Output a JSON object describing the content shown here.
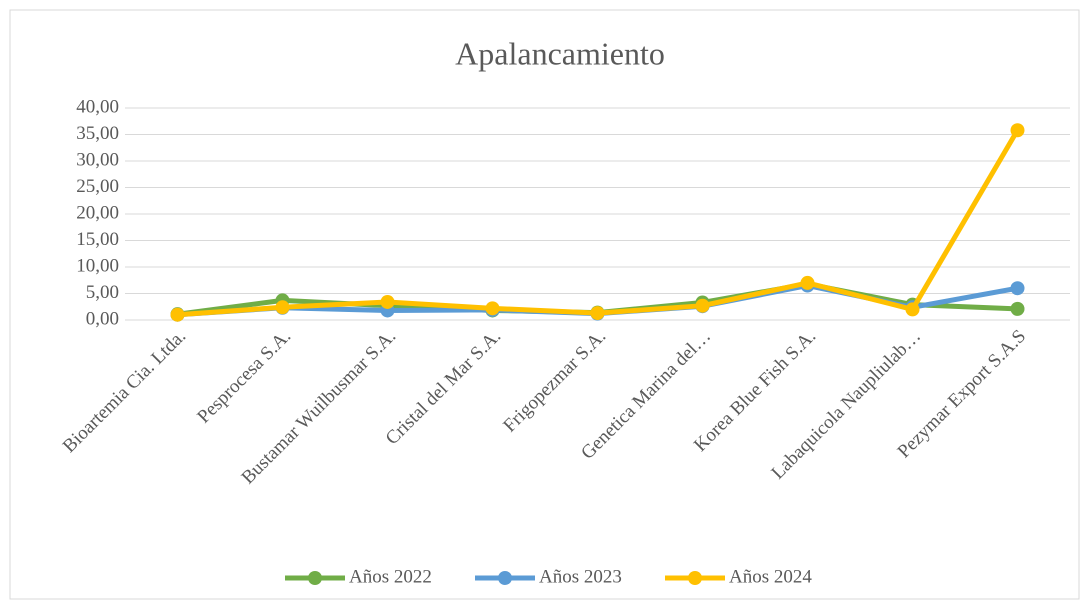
{
  "chart_data": {
    "type": "line",
    "title": "Apalancamiento",
    "categories": [
      "Bioartemia Cia. Ltda.",
      "Pesprocesa S.A.",
      "Bustamar Wuilbusmar S.A.",
      "Cristal del Mar S.A.",
      "Frigopezmar S.A.",
      "Genetica Marina del…",
      "Korea Blue Fish S.A.",
      "Labaquicola Naupliulab…",
      "Pezymar Export S.A.S"
    ],
    "series": [
      {
        "name": "Años 2022",
        "color": "#70ad47",
        "values": [
          1.1,
          3.7,
          2.7,
          1.8,
          1.4,
          3.3,
          6.8,
          2.9,
          2.1
        ]
      },
      {
        "name": "Años 2023",
        "color": "#5b9bd5",
        "values": [
          1.0,
          2.3,
          1.8,
          1.9,
          1.2,
          2.6,
          6.5,
          2.4,
          6.0
        ]
      },
      {
        "name": "Años 2024",
        "color": "#ffc000",
        "values": [
          1.0,
          2.4,
          3.4,
          2.2,
          1.3,
          2.7,
          7.0,
          2.0,
          35.8
        ]
      }
    ],
    "ylim": [
      0,
      40
    ],
    "yticks": [
      {
        "value": 0,
        "label": "0,00"
      },
      {
        "value": 5,
        "label": "5,00"
      },
      {
        "value": 10,
        "label": "10,00"
      },
      {
        "value": 15,
        "label": "15,00"
      },
      {
        "value": 20,
        "label": "20,00"
      },
      {
        "value": 25,
        "label": "25,00"
      },
      {
        "value": 30,
        "label": "30,00"
      },
      {
        "value": 35,
        "label": "35,00"
      },
      {
        "value": 40,
        "label": "40,00"
      }
    ],
    "grid": true,
    "legend": "bottom"
  }
}
